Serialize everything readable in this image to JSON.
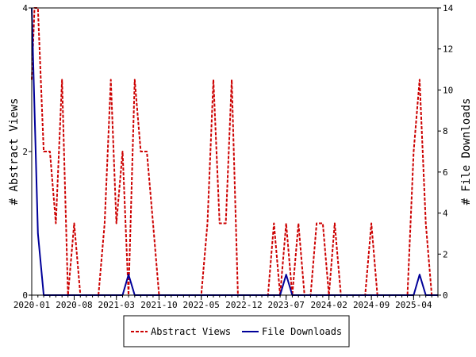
{
  "chart_data": {
    "type": "line",
    "title": "",
    "xlabel": "",
    "ylabel_left": "# Abstract Views",
    "ylabel_right": "# File Downloads",
    "x_start": "2020-01",
    "x_end": "2025-08",
    "x_ticks": [
      "2020-01",
      "2020-08",
      "2021-03",
      "2021-10",
      "2022-05",
      "2022-12",
      "2023-07",
      "2024-02",
      "2024-09",
      "2025-04"
    ],
    "ylim_left": [
      0,
      4
    ],
    "yticks_left": [
      0,
      2,
      4
    ],
    "ylim_right": [
      0,
      14
    ],
    "yticks_right": [
      0,
      2,
      4,
      6,
      8,
      10,
      12,
      14
    ],
    "grid": false,
    "legend_position": "bottom-center",
    "series": [
      {
        "name": "Abstract Views",
        "axis": "left",
        "color": "#cc0000",
        "style": "dashed",
        "points": [
          [
            "2020-01-01",
            3
          ],
          [
            "2020-01-15",
            4
          ],
          [
            "2020-02-01",
            4
          ],
          [
            "2020-03-01",
            2
          ],
          [
            "2020-04-01",
            2
          ],
          [
            "2020-05-01",
            1
          ],
          [
            "2020-06-01",
            3
          ],
          [
            "2020-07-01",
            0
          ],
          [
            "2020-08-01",
            1
          ],
          [
            "2020-09-01",
            0
          ],
          [
            "2020-10-01",
            0
          ],
          [
            "2020-11-01",
            0
          ],
          [
            "2020-12-01",
            0
          ],
          [
            "2021-01-01",
            1
          ],
          [
            "2021-02-01",
            3
          ],
          [
            "2021-03-01",
            1
          ],
          [
            "2021-04-01",
            2
          ],
          [
            "2021-05-01",
            0
          ],
          [
            "2021-06-01",
            3
          ],
          [
            "2021-07-01",
            2
          ],
          [
            "2021-08-01",
            2
          ],
          [
            "2021-09-01",
            1
          ],
          [
            "2021-10-01",
            0
          ],
          [
            "2021-11-01",
            0
          ],
          [
            "2021-12-01",
            0
          ],
          [
            "2022-01-01",
            0
          ],
          [
            "2022-02-01",
            0
          ],
          [
            "2022-03-01",
            0
          ],
          [
            "2022-04-01",
            0
          ],
          [
            "2022-05-01",
            0
          ],
          [
            "2022-06-01",
            1
          ],
          [
            "2022-07-01",
            3
          ],
          [
            "2022-08-01",
            1
          ],
          [
            "2022-09-01",
            1
          ],
          [
            "2022-10-01",
            3
          ],
          [
            "2022-11-01",
            0
          ],
          [
            "2022-12-01",
            0
          ],
          [
            "2023-01-01",
            0
          ],
          [
            "2023-02-01",
            0
          ],
          [
            "2023-03-01",
            0
          ],
          [
            "2023-04-01",
            0
          ],
          [
            "2023-05-01",
            1
          ],
          [
            "2023-06-01",
            0
          ],
          [
            "2023-07-01",
            1
          ],
          [
            "2023-08-01",
            0
          ],
          [
            "2023-09-01",
            1
          ],
          [
            "2023-10-01",
            0
          ],
          [
            "2023-11-01",
            0
          ],
          [
            "2023-12-01",
            1
          ],
          [
            "2024-01-01",
            1
          ],
          [
            "2024-02-01",
            0
          ],
          [
            "2024-03-01",
            1
          ],
          [
            "2024-04-01",
            0
          ],
          [
            "2024-05-01",
            0
          ],
          [
            "2024-06-01",
            0
          ],
          [
            "2024-07-01",
            0
          ],
          [
            "2024-08-01",
            0
          ],
          [
            "2024-09-01",
            1
          ],
          [
            "2024-10-01",
            0
          ],
          [
            "2024-11-01",
            0
          ],
          [
            "2024-12-01",
            0
          ],
          [
            "2025-01-01",
            0
          ],
          [
            "2025-02-01",
            0
          ],
          [
            "2025-03-01",
            0
          ],
          [
            "2025-04-01",
            2
          ],
          [
            "2025-05-01",
            3
          ],
          [
            "2025-06-01",
            1
          ],
          [
            "2025-07-01",
            0
          ],
          [
            "2025-08-01",
            0
          ]
        ]
      },
      {
        "name": "File Downloads",
        "axis": "right",
        "color": "#000099",
        "style": "solid",
        "points": [
          [
            "2020-01-01",
            14
          ],
          [
            "2020-02-01",
            3
          ],
          [
            "2020-03-01",
            0
          ],
          [
            "2020-04-01",
            0
          ],
          [
            "2021-04-01",
            0
          ],
          [
            "2021-05-01",
            1
          ],
          [
            "2021-06-01",
            0
          ],
          [
            "2023-06-01",
            0
          ],
          [
            "2023-07-01",
            1
          ],
          [
            "2023-08-01",
            0
          ],
          [
            "2025-04-01",
            0
          ],
          [
            "2025-05-01",
            1
          ],
          [
            "2025-06-01",
            0
          ],
          [
            "2025-08-01",
            0
          ]
        ]
      }
    ]
  }
}
